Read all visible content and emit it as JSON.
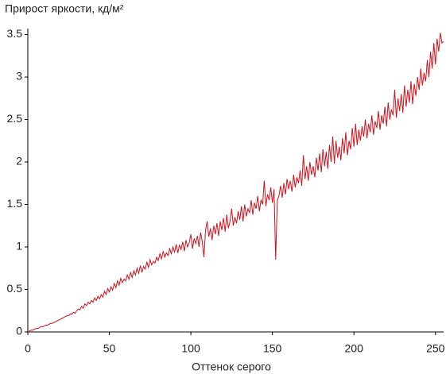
{
  "chart_data": {
    "type": "line",
    "title": "Прирост яркости, кд/м²",
    "x_label": "Оттенок серого",
    "xlim": [
      0,
      255
    ],
    "xticks": [
      0,
      50,
      100,
      150,
      200,
      250
    ],
    "ylim": [
      0,
      3.57
    ],
    "yticks": [
      0,
      0.5,
      1,
      1.5,
      2,
      2.5,
      3,
      3.5
    ],
    "grid": false,
    "color": "#d0101c",
    "values": [
      0,
      0.01,
      0.02,
      0.02,
      0.03,
      0.04,
      0.04,
      0.05,
      0.06,
      0.06,
      0.07,
      0.08,
      0.08,
      0.09,
      0.1,
      0.1,
      0.11,
      0.12,
      0.13,
      0.14,
      0.15,
      0.16,
      0.17,
      0.18,
      0.19,
      0.19,
      0.21,
      0.21,
      0.23,
      0.22,
      0.25,
      0.27,
      0.26,
      0.3,
      0.28,
      0.33,
      0.31,
      0.35,
      0.33,
      0.37,
      0.35,
      0.4,
      0.37,
      0.42,
      0.39,
      0.44,
      0.41,
      0.48,
      0.44,
      0.51,
      0.47,
      0.53,
      0.49,
      0.57,
      0.52,
      0.6,
      0.55,
      0.63,
      0.58,
      0.62,
      0.6,
      0.67,
      0.62,
      0.7,
      0.64,
      0.72,
      0.67,
      0.75,
      0.69,
      0.78,
      0.7,
      0.77,
      0.74,
      0.82,
      0.76,
      0.85,
      0.79,
      0.83,
      0.81,
      0.88,
      0.84,
      0.92,
      0.86,
      0.95,
      0.88,
      0.93,
      0.9,
      0.98,
      0.92,
      1.0,
      0.94,
      1.03,
      0.93,
      1.02,
      0.97,
      1.06,
      0.95,
      1.08,
      1.0,
      1.05,
      1.15,
      0.98,
      1.1,
      1.04,
      1.13,
      1.0,
      1.17,
      1.06,
      0.88,
      1.2,
      1.3,
      1.12,
      1.22,
      1.08,
      1.25,
      1.15,
      1.28,
      1.13,
      1.3,
      1.2,
      1.34,
      1.18,
      1.38,
      1.22,
      1.3,
      1.45,
      1.25,
      1.35,
      1.28,
      1.42,
      1.32,
      1.48,
      1.3,
      1.5,
      1.36,
      1.45,
      1.4,
      1.55,
      1.38,
      1.52,
      1.45,
      1.6,
      1.42,
      1.55,
      1.5,
      1.78,
      1.48,
      1.62,
      1.55,
      1.7,
      1.52,
      1.68,
      0.85,
      1.55,
      1.6,
      1.72,
      1.58,
      1.75,
      1.62,
      1.8,
      1.68,
      1.78,
      1.65,
      1.85,
      1.7,
      1.82,
      1.75,
      1.9,
      1.72,
      2.08,
      1.8,
      1.95,
      1.78,
      2.0,
      1.85,
      1.95,
      1.82,
      2.05,
      1.9,
      2.1,
      1.88,
      2.15,
      1.95,
      2.12,
      1.92,
      2.2,
      2.0,
      2.3,
      1.98,
      2.25,
      2.05,
      2.18,
      2.02,
      2.28,
      2.1,
      2.35,
      2.08,
      2.25,
      2.15,
      2.4,
      2.18,
      2.45,
      2.2,
      2.38,
      2.25,
      2.42,
      2.3,
      2.5,
      2.28,
      2.45,
      2.35,
      2.55,
      2.32,
      2.48,
      2.4,
      2.6,
      2.38,
      2.55,
      2.45,
      2.65,
      2.42,
      2.7,
      2.5,
      2.62,
      2.55,
      2.85,
      2.52,
      2.75,
      2.6,
      2.8,
      2.58,
      2.9,
      2.65,
      2.85,
      2.7,
      2.95,
      2.68,
      2.92,
      2.78,
      3.0,
      2.85,
      3.1,
      2.9,
      3.05,
      2.95,
      3.2,
      3.0,
      3.3,
      3.1,
      3.4,
      3.15,
      3.45,
      3.3,
      3.52,
      3.4,
      3.42
    ]
  }
}
